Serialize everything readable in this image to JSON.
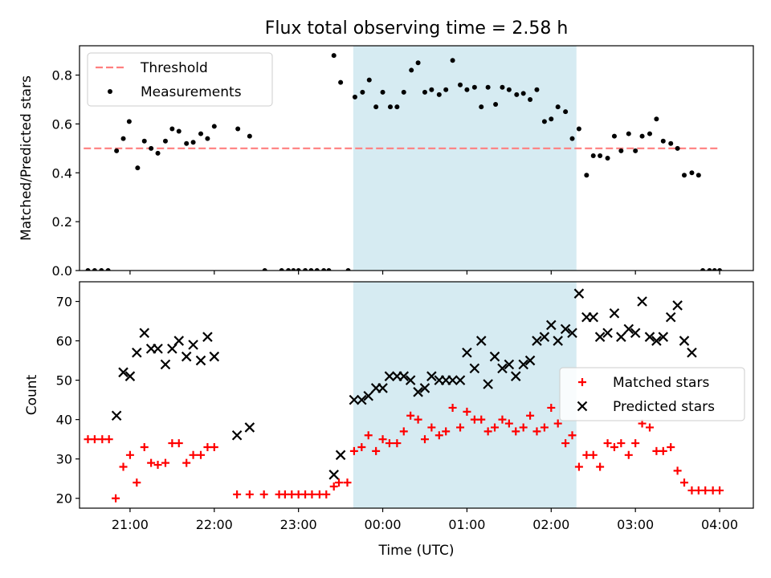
{
  "chart_data": [
    {
      "type": "scatter",
      "title": "Flux total observing time = 2.58 h",
      "xlabel": "",
      "ylabel": "Matched/Predicted stars",
      "ylim": [
        0,
        0.92
      ],
      "yticks": [
        0.0,
        0.2,
        0.4,
        0.6,
        0.8
      ],
      "ytick_labels": [
        "0.0",
        "0.2",
        "0.4",
        "0.6",
        "0.8"
      ],
      "xlim": [
        20.4,
        28.4
      ],
      "xticks": [
        21,
        22,
        23,
        24,
        25,
        26,
        27,
        28
      ],
      "xtick_labels": [
        "",
        "",
        "",
        "",
        "",
        "",
        "",
        ""
      ],
      "legend": {
        "position": "top-left",
        "entries": [
          "Threshold",
          "Measurements"
        ]
      },
      "shaded_region": {
        "from": "23:39",
        "to": "02:18",
        "color": "#add8e6"
      },
      "threshold": {
        "name": "Threshold",
        "y": 0.5,
        "x_start": 20.45,
        "x_end": 27.98,
        "color": "#ff7f7f"
      },
      "series": [
        {
          "name": "Measurements",
          "marker": "dot",
          "color": "#000000",
          "points": [
            [
              20.5,
              0.0
            ],
            [
              20.58,
              0.0
            ],
            [
              20.66,
              0.0
            ],
            [
              20.74,
              0.0
            ],
            [
              20.84,
              0.49
            ],
            [
              20.92,
              0.54
            ],
            [
              20.99,
              0.61
            ],
            [
              21.09,
              0.42
            ],
            [
              21.17,
              0.53
            ],
            [
              21.25,
              0.5
            ],
            [
              21.33,
              0.48
            ],
            [
              21.42,
              0.53
            ],
            [
              21.5,
              0.58
            ],
            [
              21.58,
              0.57
            ],
            [
              21.67,
              0.52
            ],
            [
              21.75,
              0.525
            ],
            [
              21.84,
              0.56
            ],
            [
              21.92,
              0.54
            ],
            [
              22.0,
              0.59
            ],
            [
              22.28,
              0.58
            ],
            [
              22.42,
              0.55
            ],
            [
              22.6,
              0.0
            ],
            [
              22.8,
              0.0
            ],
            [
              22.88,
              0.0
            ],
            [
              22.94,
              0.0
            ],
            [
              23.0,
              0.0
            ],
            [
              23.08,
              0.0
            ],
            [
              23.15,
              0.0
            ],
            [
              23.22,
              0.0
            ],
            [
              23.3,
              0.0
            ],
            [
              23.36,
              0.0
            ],
            [
              23.59,
              0.0
            ],
            [
              23.42,
              0.88
            ],
            [
              23.5,
              0.77
            ],
            [
              23.67,
              0.71
            ],
            [
              23.76,
              0.73
            ],
            [
              23.84,
              0.78
            ],
            [
              23.92,
              0.67
            ],
            [
              24.0,
              0.73
            ],
            [
              24.09,
              0.67
            ],
            [
              24.17,
              0.67
            ],
            [
              24.25,
              0.73
            ],
            [
              24.34,
              0.82
            ],
            [
              24.42,
              0.85
            ],
            [
              24.5,
              0.73
            ],
            [
              24.58,
              0.74
            ],
            [
              24.67,
              0.72
            ],
            [
              24.75,
              0.74
            ],
            [
              24.83,
              0.86
            ],
            [
              24.92,
              0.76
            ],
            [
              25.0,
              0.74
            ],
            [
              25.09,
              0.75
            ],
            [
              25.17,
              0.67
            ],
            [
              25.25,
              0.75
            ],
            [
              25.34,
              0.68
            ],
            [
              25.42,
              0.75
            ],
            [
              25.5,
              0.74
            ],
            [
              25.59,
              0.72
            ],
            [
              25.67,
              0.725
            ],
            [
              25.75,
              0.7
            ],
            [
              25.83,
              0.74
            ],
            [
              25.92,
              0.61
            ],
            [
              26.0,
              0.62
            ],
            [
              26.08,
              0.67
            ],
            [
              26.17,
              0.65
            ],
            [
              26.25,
              0.54
            ],
            [
              26.33,
              0.58
            ],
            [
              26.42,
              0.39
            ],
            [
              26.5,
              0.47
            ],
            [
              26.58,
              0.47
            ],
            [
              26.67,
              0.46
            ],
            [
              26.75,
              0.55
            ],
            [
              26.83,
              0.49
            ],
            [
              26.92,
              0.56
            ],
            [
              27.0,
              0.49
            ],
            [
              27.08,
              0.55
            ],
            [
              27.17,
              0.56
            ],
            [
              27.25,
              0.62
            ],
            [
              27.33,
              0.53
            ],
            [
              27.42,
              0.52
            ],
            [
              27.5,
              0.5
            ],
            [
              27.58,
              0.39
            ],
            [
              27.67,
              0.4
            ],
            [
              27.75,
              0.39
            ],
            [
              27.8,
              0.0
            ],
            [
              27.88,
              0.0
            ],
            [
              27.94,
              0.0
            ],
            [
              28.0,
              0.0
            ]
          ]
        }
      ]
    },
    {
      "type": "scatter",
      "title": "",
      "xlabel": "Time (UTC)",
      "ylabel": "Count",
      "ylim": [
        17.5,
        75
      ],
      "yticks": [
        20,
        30,
        40,
        50,
        60,
        70
      ],
      "ytick_labels": [
        "20",
        "30",
        "40",
        "50",
        "60",
        "70"
      ],
      "xlim": [
        20.4,
        28.4
      ],
      "xticks": [
        21,
        22,
        23,
        24,
        25,
        26,
        27,
        28
      ],
      "xtick_labels": [
        "21:00",
        "22:00",
        "23:00",
        "00:00",
        "01:00",
        "02:00",
        "03:00",
        "04:00"
      ],
      "legend": {
        "position": "center-right",
        "entries": [
          "Matched stars",
          "Predicted stars"
        ]
      },
      "shaded_region": {
        "from": "23:39",
        "to": "02:18",
        "color": "#add8e6"
      },
      "series": [
        {
          "name": "Matched stars",
          "marker": "plus",
          "color": "#ff0000",
          "points": [
            [
              20.5,
              35
            ],
            [
              20.58,
              35
            ],
            [
              20.67,
              35
            ],
            [
              20.75,
              35
            ],
            [
              20.83,
              20
            ],
            [
              20.92,
              28
            ],
            [
              21.0,
              31
            ],
            [
              21.08,
              24
            ],
            [
              21.17,
              33
            ],
            [
              21.25,
              29
            ],
            [
              21.33,
              28.5
            ],
            [
              21.42,
              29
            ],
            [
              21.5,
              34
            ],
            [
              21.58,
              34
            ],
            [
              21.67,
              29
            ],
            [
              21.75,
              31
            ],
            [
              21.84,
              31
            ],
            [
              21.92,
              33
            ],
            [
              22.0,
              33
            ],
            [
              22.27,
              21
            ],
            [
              22.42,
              21
            ],
            [
              22.59,
              21
            ],
            [
              22.77,
              21
            ],
            [
              22.84,
              21
            ],
            [
              22.92,
              21
            ],
            [
              23.0,
              21
            ],
            [
              23.08,
              21
            ],
            [
              23.16,
              21
            ],
            [
              23.25,
              21
            ],
            [
              23.33,
              21
            ],
            [
              23.42,
              23
            ],
            [
              23.48,
              24
            ],
            [
              23.58,
              24
            ],
            [
              23.66,
              32
            ],
            [
              23.75,
              33
            ],
            [
              23.83,
              36
            ],
            [
              23.92,
              32
            ],
            [
              24.0,
              35
            ],
            [
              24.08,
              34
            ],
            [
              24.17,
              34
            ],
            [
              24.25,
              37
            ],
            [
              24.33,
              41
            ],
            [
              24.42,
              40
            ],
            [
              24.5,
              35
            ],
            [
              24.58,
              38
            ],
            [
              24.67,
              36
            ],
            [
              24.75,
              37
            ],
            [
              24.83,
              43
            ],
            [
              24.92,
              38
            ],
            [
              25.0,
              42
            ],
            [
              25.09,
              40
            ],
            [
              25.17,
              40
            ],
            [
              25.25,
              37
            ],
            [
              25.33,
              38
            ],
            [
              25.42,
              40
            ],
            [
              25.5,
              39
            ],
            [
              25.58,
              37
            ],
            [
              25.67,
              38
            ],
            [
              25.75,
              41
            ],
            [
              25.83,
              37
            ],
            [
              25.92,
              38
            ],
            [
              26.0,
              43
            ],
            [
              26.08,
              39
            ],
            [
              26.17,
              34
            ],
            [
              26.25,
              36
            ],
            [
              26.33,
              28
            ],
            [
              26.42,
              31
            ],
            [
              26.5,
              31
            ],
            [
              26.58,
              28
            ],
            [
              26.67,
              34
            ],
            [
              26.75,
              33
            ],
            [
              26.83,
              34
            ],
            [
              26.92,
              31
            ],
            [
              27.0,
              34
            ],
            [
              27.08,
              39
            ],
            [
              27.17,
              38
            ],
            [
              27.25,
              32
            ],
            [
              27.33,
              32
            ],
            [
              27.42,
              33
            ],
            [
              27.5,
              27
            ],
            [
              27.58,
              24
            ],
            [
              27.67,
              22
            ],
            [
              27.75,
              22
            ],
            [
              27.83,
              22
            ],
            [
              27.92,
              22
            ],
            [
              28.0,
              22
            ]
          ]
        },
        {
          "name": "Predicted stars",
          "marker": "x",
          "color": "#000000",
          "points": [
            [
              20.84,
              41
            ],
            [
              20.92,
              52
            ],
            [
              21.0,
              51
            ],
            [
              21.08,
              57
            ],
            [
              21.17,
              62
            ],
            [
              21.25,
              58
            ],
            [
              21.33,
              58
            ],
            [
              21.42,
              54
            ],
            [
              21.5,
              58
            ],
            [
              21.58,
              60
            ],
            [
              21.67,
              56
            ],
            [
              21.75,
              59
            ],
            [
              21.84,
              55
            ],
            [
              21.92,
              61
            ],
            [
              22.0,
              56
            ],
            [
              22.27,
              36
            ],
            [
              22.42,
              38
            ],
            [
              23.42,
              26
            ],
            [
              23.5,
              31
            ],
            [
              23.66,
              45
            ],
            [
              23.75,
              45
            ],
            [
              23.83,
              46
            ],
            [
              23.92,
              48
            ],
            [
              24.0,
              48
            ],
            [
              24.08,
              51
            ],
            [
              24.17,
              51
            ],
            [
              24.25,
              51
            ],
            [
              24.33,
              50
            ],
            [
              24.42,
              47
            ],
            [
              24.5,
              48
            ],
            [
              24.58,
              51
            ],
            [
              24.67,
              50
            ],
            [
              24.75,
              50
            ],
            [
              24.83,
              50
            ],
            [
              24.92,
              50
            ],
            [
              25.0,
              57
            ],
            [
              25.09,
              53
            ],
            [
              25.17,
              60
            ],
            [
              25.25,
              49
            ],
            [
              25.33,
              56
            ],
            [
              25.42,
              53
            ],
            [
              25.5,
              54
            ],
            [
              25.58,
              51
            ],
            [
              25.67,
              54
            ],
            [
              25.75,
              55
            ],
            [
              25.83,
              60
            ],
            [
              25.92,
              61
            ],
            [
              26.0,
              64
            ],
            [
              26.08,
              60
            ],
            [
              26.17,
              63
            ],
            [
              26.25,
              62
            ],
            [
              26.33,
              72
            ],
            [
              26.42,
              66
            ],
            [
              26.5,
              66
            ],
            [
              26.58,
              61
            ],
            [
              26.67,
              62
            ],
            [
              26.75,
              67
            ],
            [
              26.83,
              61
            ],
            [
              26.92,
              63
            ],
            [
              27.0,
              62
            ],
            [
              27.08,
              70
            ],
            [
              27.17,
              61
            ],
            [
              27.25,
              60
            ],
            [
              27.33,
              61
            ],
            [
              27.42,
              66
            ],
            [
              27.5,
              69
            ],
            [
              27.58,
              60
            ],
            [
              27.67,
              57
            ]
          ]
        }
      ]
    }
  ]
}
